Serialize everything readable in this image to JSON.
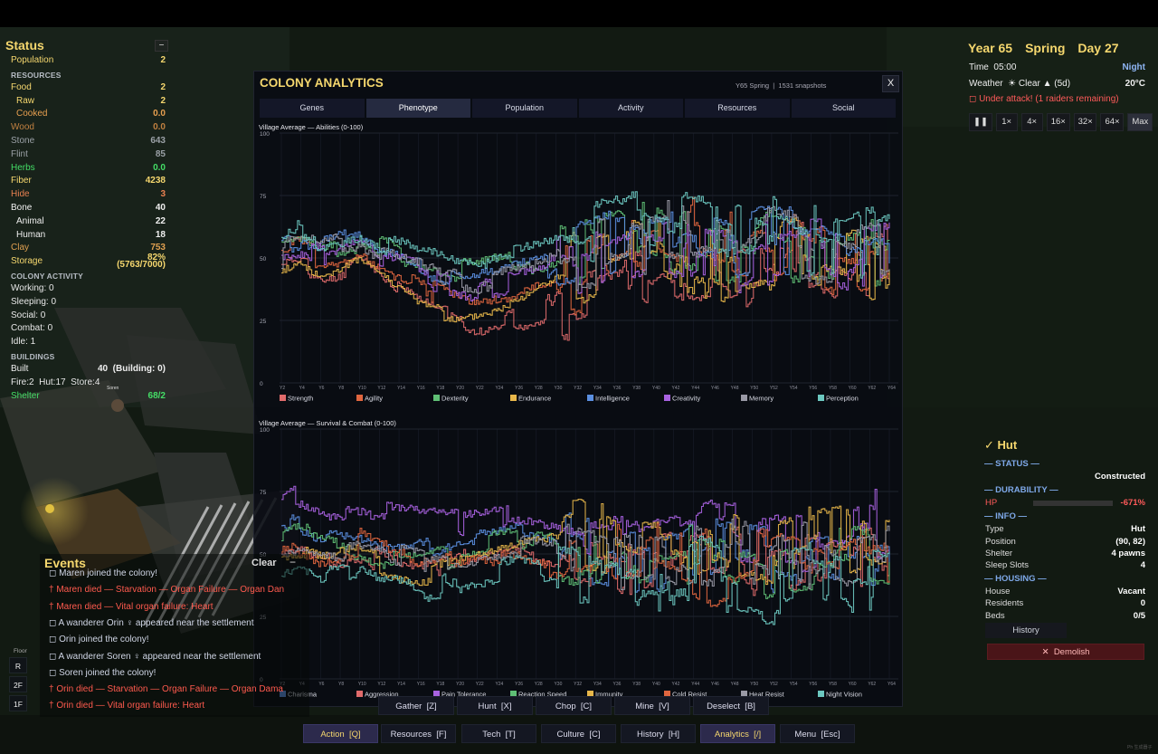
{
  "status": {
    "title": "Status",
    "collapse": "−",
    "population": {
      "label": "Population",
      "value": "2",
      "color": "#f5d76e"
    },
    "resources_header": "RESOURCES",
    "resources": [
      {
        "label": "Food",
        "value": "2",
        "color": "#f5d76e"
      },
      {
        "label": "Raw",
        "value": "2",
        "color": "#f5d76e",
        "indent": true
      },
      {
        "label": "Cooked",
        "value": "0.0",
        "color": "#e8a050",
        "indent": true
      },
      {
        "label": "Wood",
        "value": "0.0",
        "color": "#c08040"
      },
      {
        "label": "Stone",
        "value": "643",
        "color": "#9aa0a6"
      },
      {
        "label": "Flint",
        "value": "85",
        "color": "#9aa0a6"
      },
      {
        "label": "Herbs",
        "value": "0.0",
        "color": "#44dd66"
      },
      {
        "label": "Fiber",
        "value": "4238",
        "color": "#f5d76e"
      },
      {
        "label": "Hide",
        "value": "3",
        "color": "#e88050"
      },
      {
        "label": "Bone",
        "value": "40",
        "color": "#f0f0f0"
      },
      {
        "label": "Animal",
        "value": "22",
        "color": "#f0f0f0",
        "indent": true
      },
      {
        "label": "Human",
        "value": "18",
        "color": "#f0f0f0",
        "indent": true
      },
      {
        "label": "Clay",
        "value": "753",
        "color": "#e0a050"
      },
      {
        "label": "Storage",
        "value": "82%",
        "sub": "(5763/7000)",
        "color": "#f5d76e"
      }
    ],
    "activity_header": "COLONY ACTIVITY",
    "activity": [
      "Working: 0",
      "Sleeping: 0",
      "Social: 0",
      "Combat: 0",
      "Idle: 1"
    ],
    "buildings_header": "BUILDINGS",
    "built_label": "Built",
    "built_value": "40  (Building: 0)",
    "building_counts": "Fire:2  Hut:17  Store:4",
    "shelter_label": "Shelter",
    "shelter_value": "68/2"
  },
  "time": {
    "year": "Year 65",
    "season": "Spring",
    "day": "Day 27",
    "time_label": "Time  05:00",
    "phase": "Night",
    "weather_label": "Weather  ☀ Clear ▲ (5d)",
    "temperature": "20°C",
    "alert": "◻ Under attack! (1 raiders remaining)",
    "speeds": [
      "❚❚",
      "1×",
      "4×",
      "16×",
      "32×",
      "64×",
      "Max"
    ],
    "active_speed": 6
  },
  "analytics": {
    "title": "COLONY ANALYTICS",
    "meta": "Y65 Spring  |  1531 snapshots",
    "close": "X",
    "tabs": [
      "Genes",
      "Phenotype",
      "Population",
      "Activity",
      "Resources",
      "Social"
    ],
    "active_tab": 1,
    "x_tick_labels": [
      "Y2",
      "Y4",
      "Y6",
      "Y8",
      "Y10",
      "Y12",
      "Y14",
      "Y16",
      "Y18",
      "Y20",
      "Y22",
      "Y24",
      "Y26",
      "Y28",
      "Y30",
      "Y32",
      "Y34",
      "Y36",
      "Y38",
      "Y40",
      "Y42",
      "Y44",
      "Y46",
      "Y48",
      "Y50",
      "Y52",
      "Y54",
      "Y56",
      "Y58",
      "Y60",
      "Y62",
      "Y64"
    ]
  },
  "chart_data": [
    {
      "type": "line",
      "title": "Village Average — Abilities (0-100)",
      "ylim": [
        0,
        100
      ],
      "yticks": [
        "100",
        "75",
        "50",
        "25",
        "0"
      ],
      "grid": true,
      "legend_position": "bottom",
      "series": [
        {
          "name": "Strength",
          "color": "#e06b6b",
          "seed": 11,
          "values": [
            48,
            50,
            45,
            47,
            52,
            46,
            38,
            33,
            30,
            27,
            23,
            24,
            27,
            29,
            31,
            32,
            34,
            36,
            40,
            42,
            45,
            44,
            46,
            40,
            45,
            48,
            52,
            50,
            47,
            44,
            48,
            50
          ]
        },
        {
          "name": "Agility",
          "color": "#e0663f",
          "seed": 23,
          "values": [
            52,
            54,
            50,
            52,
            55,
            50,
            45,
            40,
            36,
            33,
            30,
            32,
            35,
            38,
            40,
            42,
            45,
            50,
            55,
            58,
            60,
            62,
            58,
            55,
            52,
            54,
            56,
            52,
            50,
            48,
            50,
            52
          ]
        },
        {
          "name": "Dexterity",
          "color": "#5fbf75",
          "seed": 37,
          "values": [
            55,
            58,
            54,
            56,
            58,
            55,
            52,
            50,
            48,
            45,
            44,
            46,
            48,
            50,
            52,
            54,
            55,
            56,
            58,
            60,
            58,
            56,
            55,
            54,
            55,
            56,
            55,
            54,
            52,
            50,
            52,
            54
          ]
        },
        {
          "name": "Endurance",
          "color": "#e8b74a",
          "seed": 41,
          "values": [
            45,
            48,
            42,
            45,
            50,
            44,
            38,
            32,
            30,
            28,
            30,
            32,
            36,
            40,
            44,
            46,
            48,
            50,
            52,
            54,
            52,
            50,
            48,
            46,
            48,
            50,
            52,
            50,
            48,
            46,
            48,
            50
          ]
        },
        {
          "name": "Intelligence",
          "color": "#5b8fe0",
          "seed": 53,
          "values": [
            56,
            58,
            55,
            57,
            60,
            56,
            52,
            48,
            44,
            42,
            40,
            42,
            44,
            46,
            48,
            50,
            52,
            55,
            58,
            60,
            62,
            60,
            58,
            56,
            58,
            60,
            58,
            56,
            55,
            52,
            54,
            56
          ]
        },
        {
          "name": "Creativity",
          "color": "#a862e0",
          "seed": 67,
          "values": [
            50,
            52,
            50,
            55,
            58,
            52,
            48,
            45,
            42,
            40,
            38,
            40,
            42,
            44,
            46,
            48,
            50,
            52,
            55,
            58,
            56,
            54,
            52,
            50,
            52,
            54,
            56,
            54,
            52,
            50,
            52,
            54
          ]
        },
        {
          "name": "Memory",
          "color": "#9a9aa6",
          "seed": 71,
          "values": [
            52,
            54,
            52,
            54,
            56,
            52,
            48,
            46,
            44,
            42,
            40,
            42,
            44,
            46,
            48,
            50,
            52,
            54,
            56,
            58,
            60,
            58,
            56,
            54,
            56,
            58,
            56,
            54,
            52,
            50,
            52,
            54
          ]
        },
        {
          "name": "Perception",
          "color": "#6cc8c0",
          "seed": 83,
          "values": [
            58,
            60,
            58,
            60,
            62,
            58,
            55,
            52,
            50,
            48,
            46,
            48,
            50,
            52,
            54,
            56,
            58,
            60,
            64,
            66,
            64,
            62,
            60,
            58,
            60,
            62,
            60,
            58,
            56,
            55,
            56,
            58
          ]
        }
      ]
    },
    {
      "type": "line",
      "title": "Village Average — Survival & Combat (0-100)",
      "ylim": [
        0,
        100
      ],
      "yticks": [
        "100",
        "75",
        "50",
        "25",
        "0"
      ],
      "grid": true,
      "legend_position": "bottom",
      "series": [
        {
          "name": "Charisma",
          "color": "#5b8fe0",
          "seed": 91,
          "values": [
            60,
            62,
            58,
            56,
            55,
            52,
            50,
            50,
            52,
            54,
            55,
            56,
            58,
            56,
            54,
            52,
            50,
            48,
            46,
            48,
            50,
            52,
            54,
            52,
            50,
            48,
            46,
            48,
            50,
            52,
            50,
            48
          ]
        },
        {
          "name": "Aggression",
          "color": "#e06b6b",
          "seed": 103,
          "values": [
            50,
            52,
            48,
            50,
            52,
            48,
            45,
            44,
            46,
            48,
            50,
            52,
            54,
            52,
            50,
            48,
            46,
            44,
            46,
            48,
            50,
            52,
            50,
            48,
            46,
            44,
            46,
            48,
            50,
            48,
            46,
            44
          ]
        },
        {
          "name": "Pain Tolerance",
          "color": "#a862e0",
          "seed": 113,
          "values": [
            72,
            74,
            70,
            68,
            66,
            65,
            64,
            63,
            62,
            62,
            63,
            64,
            65,
            64,
            62,
            60,
            58,
            56,
            55,
            56,
            58,
            60,
            58,
            56,
            54,
            52,
            54,
            56,
            58,
            60,
            62,
            64
          ]
        },
        {
          "name": "Reaction Speed",
          "color": "#5fbf75",
          "seed": 127,
          "values": [
            55,
            56,
            54,
            52,
            50,
            48,
            46,
            46,
            48,
            50,
            52,
            54,
            55,
            54,
            52,
            50,
            48,
            46,
            44,
            46,
            48,
            50,
            48,
            46,
            44,
            46,
            48,
            50,
            52,
            50,
            48,
            46
          ]
        },
        {
          "name": "Immunity",
          "color": "#e8b74a",
          "seed": 131,
          "values": [
            48,
            50,
            46,
            48,
            50,
            46,
            44,
            42,
            44,
            46,
            48,
            50,
            52,
            54,
            56,
            58,
            56,
            54,
            52,
            50,
            52,
            54,
            56,
            54,
            52,
            50,
            52,
            54,
            56,
            54,
            52,
            50
          ]
        },
        {
          "name": "Cold Resist",
          "color": "#e0663f",
          "seed": 149,
          "values": [
            52,
            54,
            50,
            52,
            54,
            50,
            48,
            46,
            48,
            50,
            52,
            50,
            48,
            46,
            44,
            46,
            48,
            50,
            52,
            50,
            48,
            46,
            44,
            46,
            48,
            50,
            48,
            46,
            44,
            42,
            44,
            46
          ]
        },
        {
          "name": "Heat Resist",
          "color": "#9a9aa6",
          "seed": 157,
          "values": [
            50,
            51,
            49,
            50,
            51,
            49,
            48,
            47,
            48,
            49,
            50,
            51,
            52,
            51,
            50,
            49,
            48,
            47,
            48,
            49,
            50,
            51,
            50,
            49,
            48,
            47,
            48,
            49,
            50,
            49,
            48,
            47
          ]
        },
        {
          "name": "Night Vision",
          "color": "#6cc8c0",
          "seed": 163,
          "values": [
            42,
            44,
            40,
            42,
            44,
            40,
            38,
            36,
            38,
            40,
            42,
            44,
            46,
            44,
            42,
            40,
            38,
            36,
            38,
            40,
            42,
            44,
            42,
            40,
            38,
            36,
            38,
            40,
            42,
            40,
            38,
            36
          ]
        }
      ]
    }
  ],
  "inspector": {
    "title": "✓ Hut",
    "status_header": "— STATUS —",
    "status_value": "Constructed",
    "durability_header": "— DURABILITY —",
    "hp_label": "HP",
    "hp_value": "-671%",
    "hp_fill": 0,
    "info_header": "— INFO —",
    "info": [
      {
        "label": "Type",
        "value": "Hut"
      },
      {
        "label": "Position",
        "value": "(90, 82)"
      },
      {
        "label": "Shelter",
        "value": "4 pawns"
      },
      {
        "label": "Sleep Slots",
        "value": "4"
      }
    ],
    "housing_header": "— HOUSING —",
    "housing": [
      {
        "label": "House",
        "value": "Vacant"
      },
      {
        "label": "Residents",
        "value": "0"
      },
      {
        "label": "Beds",
        "value": "0/5"
      }
    ],
    "history_button": "History",
    "demolish_button": "✕  Demolish"
  },
  "events": {
    "title": "Events",
    "clear": "Clear",
    "minimize": "−",
    "items": [
      {
        "text": "◻ Maren joined the colony!",
        "kind": "info"
      },
      {
        "text": "† Maren died — Starvation — Organ Failure — Organ Dan",
        "kind": "death"
      },
      {
        "text": "† Maren died — Vital organ failure: Heart",
        "kind": "death"
      },
      {
        "text": "◻ A wanderer Orin ♀ appeared near the settlement",
        "kind": "info"
      },
      {
        "text": "◻ Orin joined the colony!",
        "kind": "info"
      },
      {
        "text": "◻ A wanderer Soren ♀ appeared near the settlement",
        "kind": "info"
      },
      {
        "text": "◻ Soren joined the colony!",
        "kind": "info"
      },
      {
        "text": "† Orin died — Starvation — Organ Failure — Organ Dama",
        "kind": "death"
      },
      {
        "text": "† Orin died — Vital organ failure: Heart",
        "kind": "death"
      }
    ]
  },
  "floors": {
    "label": "Floor",
    "items": [
      "R",
      "2F",
      "1F"
    ]
  },
  "action_bar": [
    "Gather  [Z]",
    "Hunt  [X]",
    "Chop  [C]",
    "Mine  [V]",
    "Deselect  [B]"
  ],
  "main_bar": [
    "Action  [Q]",
    "Resources  [F]",
    "Tech  [T]",
    "Culture  [C]",
    "History  [H]",
    "Analytics  [/]",
    "Menu  [Esc]"
  ],
  "main_bar_active": [
    0,
    5
  ],
  "map_label": "Soren",
  "watermark": "Ph 生成器子"
}
